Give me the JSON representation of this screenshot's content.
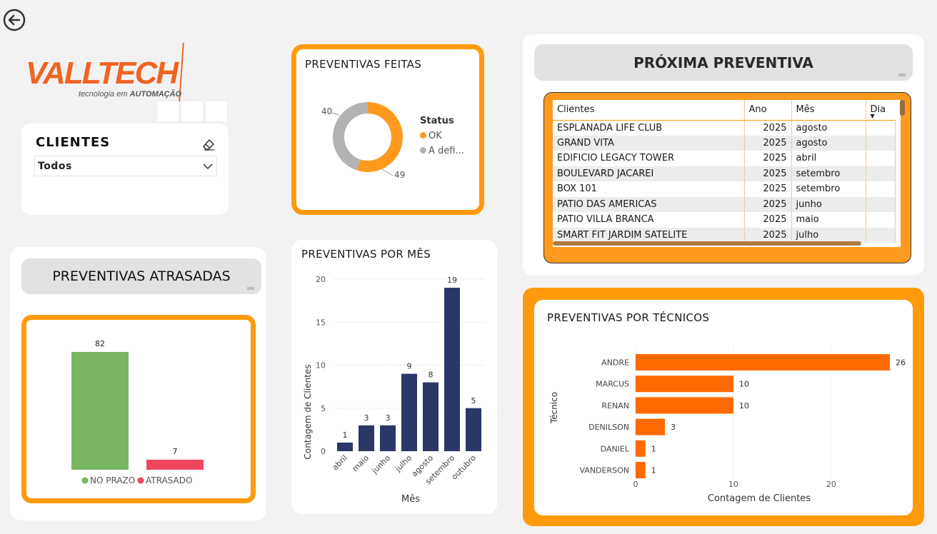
{
  "back_button": {
    "icon": "arrow-left-icon"
  },
  "logo": {
    "brand": "VALLTECH",
    "tagline_1": "tecnologia em",
    "tagline_2": "AUTOMAÇÃO"
  },
  "clientes_filter": {
    "title": "CLIENTES",
    "selected": "Todos",
    "clear_icon": "eraser-icon"
  },
  "preventivas_feitas": {
    "title": "PREVENTIVAS FEITAS",
    "legend_title": "Status",
    "chart_data": {
      "type": "pie",
      "labels": [
        "OK",
        "A defi..."
      ],
      "values": [
        49,
        40
      ],
      "colors": [
        "#ff9a1f",
        "#b3b3b3"
      ]
    },
    "label_ok": "49",
    "label_def": "40"
  },
  "proxima_preventiva": {
    "title": "PRÓXIMA PREVENTIVA",
    "columns": [
      "Clientes",
      "Ano",
      "Mês",
      "Dia"
    ],
    "rows": [
      [
        "ESPLANADA LIFE CLUB",
        "2025",
        "agosto",
        ""
      ],
      [
        "GRAND VITA",
        "2025",
        "agosto",
        ""
      ],
      [
        "EDIFICIO LEGACY TOWER",
        "2025",
        "abril",
        ""
      ],
      [
        "BOULEVARD JACAREI",
        "2025",
        "setembro",
        ""
      ],
      [
        "BOX 101",
        "2025",
        "setembro",
        ""
      ],
      [
        "PATIO DAS AMERICAS",
        "2025",
        "junho",
        ""
      ],
      [
        "PATIO VILLA BRANCA",
        "2025",
        "maio",
        ""
      ],
      [
        "SMART FIT JARDIM SATELITE",
        "2025",
        "julho",
        ""
      ]
    ]
  },
  "preventivas_atrasadas": {
    "title": "PREVENTIVAS ATRASADAS",
    "chart_data": {
      "type": "bar",
      "categories": [
        "NO PRAZO",
        "ATRASADO"
      ],
      "values": [
        82,
        7
      ],
      "colors": [
        "#7ab661",
        "#f0475f"
      ]
    },
    "legend": [
      "NO PRAZO",
      "ATRASADO"
    ]
  },
  "preventivas_por_mes": {
    "title": "PREVENTIVAS POR MÊS",
    "chart_data": {
      "type": "bar",
      "categories": [
        "abril",
        "maio",
        "junho",
        "julho",
        "agosto",
        "setembro",
        "outubro"
      ],
      "values": [
        1,
        3,
        3,
        9,
        8,
        19,
        5
      ],
      "ylim": [
        0,
        20
      ],
      "yticks": [
        "0",
        "5",
        "10",
        "15",
        "20"
      ],
      "xlabel": "Mês",
      "ylabel": "Contagem de Clientes",
      "color": "#2b3768"
    }
  },
  "preventivas_por_tecnicos": {
    "title": "PREVENTIVAS POR TÉCNICOS",
    "chart_data": {
      "type": "bar",
      "categories": [
        "ANDRE",
        "MARCUS",
        "RENAN",
        "DENILSON",
        "DANIEL",
        "VANDERSON"
      ],
      "values": [
        26,
        10,
        10,
        3,
        1,
        1
      ],
      "xlim": [
        0,
        26
      ],
      "xticks": [
        "0",
        "10",
        "20"
      ],
      "xlabel": "Contagem de Clientes",
      "ylabel": "Técnico",
      "color": "#ff6a00"
    }
  }
}
